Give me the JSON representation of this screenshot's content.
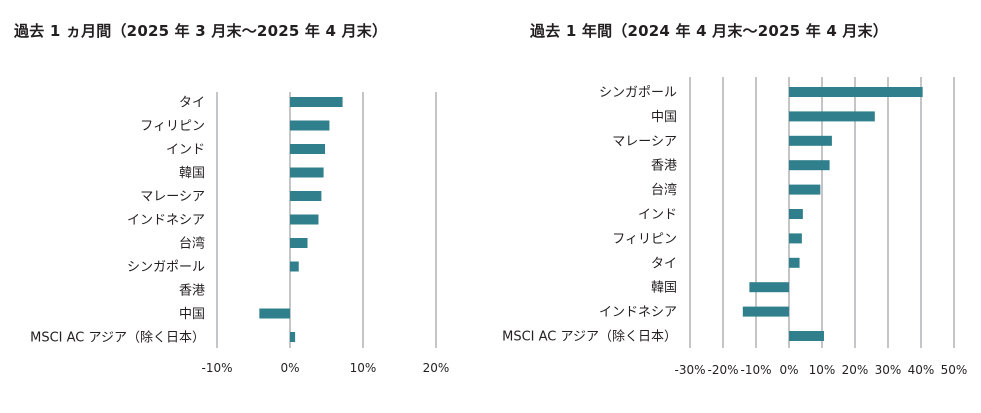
{
  "chart_data": [
    {
      "type": "bar",
      "orientation": "horizontal",
      "title": "過去 1 ヵ月間（2025 年 3 月末〜2025 年 4 月末）",
      "xlabel": "",
      "ylabel": "",
      "categories": [
        "タイ",
        "フィリピン",
        "インド",
        "韓国",
        "マレーシア",
        "インドネシア",
        "台湾",
        "シンガポール",
        "香港",
        "中国",
        "MSCI AC アジア（除く日本）"
      ],
      "values": [
        7.2,
        5.4,
        4.8,
        4.6,
        4.3,
        3.9,
        2.4,
        1.2,
        0.0,
        -4.2,
        0.7
      ],
      "unit": "%",
      "xlim": [
        -10,
        20
      ],
      "xticks": [
        -10,
        0,
        10,
        20
      ],
      "xtick_labels": [
        "-10%",
        "0%",
        "10%",
        "20%"
      ],
      "grid": true,
      "bar_color": "#2f7f8c"
    },
    {
      "type": "bar",
      "orientation": "horizontal",
      "title": "過去 1 年間（2024 年 4 月末〜2025 年 4 月末）",
      "xlabel": "",
      "ylabel": "",
      "categories": [
        "シンガポール",
        "中国",
        "マレーシア",
        "香港",
        "台湾",
        "インド",
        "フィリピン",
        "タイ",
        "韓国",
        "インドネシア",
        "MSCI AC アジア（除く日本）"
      ],
      "values": [
        40.5,
        26.0,
        13.0,
        12.3,
        9.5,
        4.2,
        3.9,
        3.2,
        -12.0,
        -14.0,
        10.6
      ],
      "unit": "%",
      "xlim": [
        -30,
        50
      ],
      "xticks": [
        -30,
        -20,
        -10,
        0,
        10,
        20,
        30,
        40,
        50
      ],
      "xtick_labels": [
        "-30%",
        "-20%",
        "-10%",
        "0%",
        "10%",
        "20%",
        "30%",
        "40%",
        "50%"
      ],
      "grid": true,
      "bar_color": "#2f7f8c"
    }
  ]
}
